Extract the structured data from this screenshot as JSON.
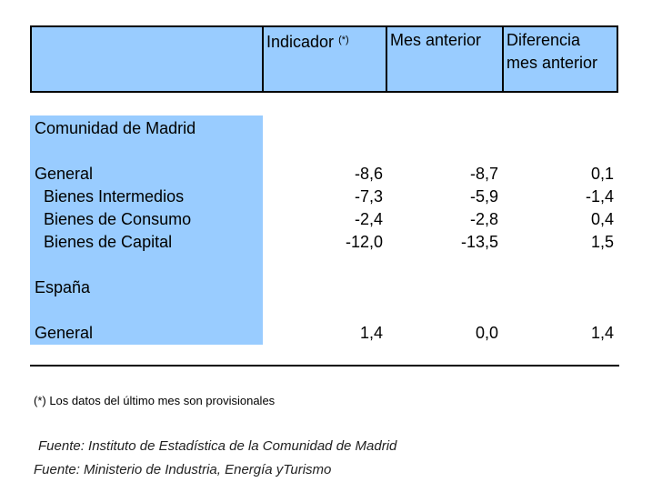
{
  "header": {
    "col_indicador": "Indicador",
    "col_indicador_mark": "(*)",
    "col_mes_anterior": "Mes anterior",
    "col_diferencia_line1": "Diferencia",
    "col_diferencia_line2": "mes anterior"
  },
  "sections": [
    {
      "title": "Comunidad de Madrid",
      "rows": [
        {
          "label": "General",
          "indicador": "-8,6",
          "mes_anterior": "-8,7",
          "diferencia": "0,1"
        },
        {
          "label": "Bienes Intermedios",
          "indicador": "-7,3",
          "mes_anterior": "-5,9",
          "diferencia": "-1,4"
        },
        {
          "label": "Bienes de Consumo",
          "indicador": "-2,4",
          "mes_anterior": "-2,8",
          "diferencia": "0,4"
        },
        {
          "label": "Bienes de Capital",
          "indicador": "-12,0",
          "mes_anterior": "-13,5",
          "diferencia": "1,5"
        }
      ]
    },
    {
      "title": "España",
      "rows": [
        {
          "label": "General",
          "indicador": "1,4",
          "mes_anterior": "0,0",
          "diferencia": "1,4"
        }
      ]
    }
  ],
  "footnote": "(*) Los datos del último mes son provisionales",
  "sources": [
    "Fuente: Instituto de Estadística de la Comunidad de Madrid",
    "Fuente: Ministerio de Industria, Energía yTurismo"
  ],
  "colors": {
    "header_bg": "#99ccff",
    "label_col_bg": "#99ccff"
  }
}
